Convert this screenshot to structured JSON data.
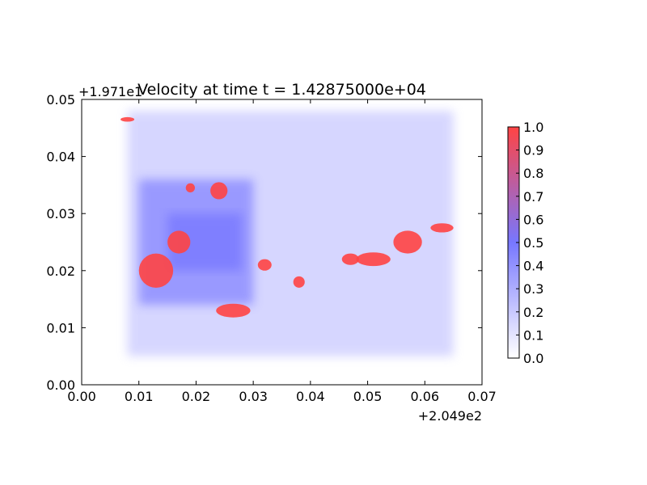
{
  "chart_data": {
    "type": "heatmap",
    "title": "Velocity at time t = 1.42875000e+04",
    "xlabel": "",
    "ylabel": "",
    "x_offset_label": "+2.049e2",
    "y_offset_label": "+1.971e1",
    "xlim": [
      0.0,
      0.07
    ],
    "ylim": [
      0.0,
      0.05
    ],
    "x_ticks": [
      "0.00",
      "0.01",
      "0.02",
      "0.03",
      "0.04",
      "0.05",
      "0.06",
      "0.07"
    ],
    "y_ticks": [
      "0.00",
      "0.01",
      "0.02",
      "0.03",
      "0.04",
      "0.05"
    ],
    "colorbar": {
      "min": 0.0,
      "max": 1.0,
      "ticks": [
        "0.0",
        "0.1",
        "0.2",
        "0.3",
        "0.4",
        "0.5",
        "0.6",
        "0.7",
        "0.8",
        "0.9",
        "1.0"
      ],
      "colors": [
        "#ffffff",
        "#7777ff",
        "#ff4444"
      ]
    },
    "field_regions": [
      {
        "x0": 0.008,
        "x1": 0.065,
        "y0": 0.005,
        "y1": 0.048,
        "value": 0.2
      },
      {
        "x0": 0.01,
        "x1": 0.03,
        "y0": 0.014,
        "y1": 0.036,
        "value": 0.45
      },
      {
        "x0": 0.015,
        "x1": 0.028,
        "y0": 0.02,
        "y1": 0.03,
        "value": 0.5
      }
    ],
    "hotspots": [
      {
        "x": 0.013,
        "y": 0.02,
        "rx": 0.003,
        "ry": 0.003,
        "value": 1.0
      },
      {
        "x": 0.017,
        "y": 0.025,
        "rx": 0.002,
        "ry": 0.002,
        "value": 1.0
      },
      {
        "x": 0.024,
        "y": 0.034,
        "rx": 0.0015,
        "ry": 0.0015,
        "value": 1.0
      },
      {
        "x": 0.0265,
        "y": 0.013,
        "rx": 0.003,
        "ry": 0.0012,
        "value": 1.0
      },
      {
        "x": 0.032,
        "y": 0.021,
        "rx": 0.0012,
        "ry": 0.001,
        "value": 1.0
      },
      {
        "x": 0.038,
        "y": 0.018,
        "rx": 0.001,
        "ry": 0.001,
        "value": 1.0
      },
      {
        "x": 0.047,
        "y": 0.022,
        "rx": 0.0015,
        "ry": 0.001,
        "value": 1.0
      },
      {
        "x": 0.051,
        "y": 0.022,
        "rx": 0.003,
        "ry": 0.0012,
        "value": 1.0
      },
      {
        "x": 0.057,
        "y": 0.025,
        "rx": 0.0025,
        "ry": 0.002,
        "value": 1.0
      },
      {
        "x": 0.063,
        "y": 0.0275,
        "rx": 0.002,
        "ry": 0.0008,
        "value": 1.0
      },
      {
        "x": 0.008,
        "y": 0.0465,
        "rx": 0.0012,
        "ry": 0.0004,
        "value": 1.0
      },
      {
        "x": 0.019,
        "y": 0.0345,
        "rx": 0.0008,
        "ry": 0.0008,
        "value": 1.0
      }
    ]
  }
}
